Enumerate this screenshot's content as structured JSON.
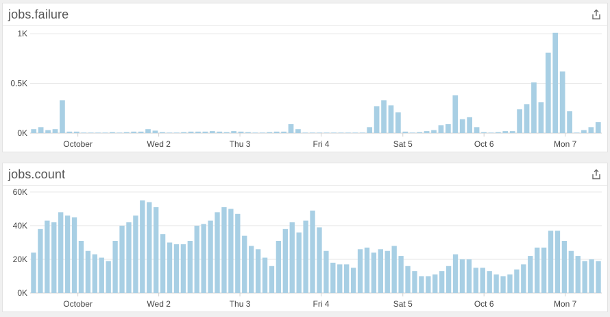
{
  "colors": {
    "bar": "#a8cfe4",
    "grid": "#e6e6e6",
    "axis": "#cfcfcf",
    "text": "#444444"
  },
  "icons": {
    "share": "share-icon"
  },
  "chart_data": [
    {
      "type": "bar",
      "title": "jobs.failure",
      "xlabel": "",
      "ylabel": "",
      "x_tick_labels": [
        "October",
        "Wed 2",
        "Thu 3",
        "Fri 4",
        "Sat 5",
        "Oct 6",
        "Mon 7"
      ],
      "y_tick_labels": [
        "0K",
        "0.5K",
        "1K"
      ],
      "y_ticks": [
        0,
        500,
        1000
      ],
      "ylim": [
        0,
        1050
      ],
      "grid": true,
      "legend": "none",
      "values": [
        40,
        60,
        30,
        40,
        330,
        15,
        15,
        5,
        5,
        5,
        5,
        10,
        5,
        10,
        15,
        15,
        40,
        25,
        10,
        5,
        5,
        10,
        15,
        15,
        15,
        20,
        15,
        10,
        20,
        15,
        10,
        5,
        5,
        10,
        15,
        15,
        90,
        40,
        5,
        5,
        5,
        5,
        5,
        5,
        5,
        5,
        5,
        60,
        270,
        330,
        280,
        210,
        15,
        5,
        10,
        20,
        30,
        80,
        90,
        380,
        140,
        160,
        60,
        10,
        5,
        10,
        20,
        20,
        240,
        290,
        510,
        310,
        810,
        1010,
        620,
        220,
        5,
        30,
        60,
        110
      ]
    },
    {
      "type": "bar",
      "title": "jobs.count",
      "xlabel": "",
      "ylabel": "",
      "x_tick_labels": [
        "October",
        "Wed 2",
        "Thu 3",
        "Fri 4",
        "Sat 5",
        "Oct 6",
        "Mon 7"
      ],
      "y_tick_labels": [
        "0K",
        "20K",
        "40K",
        "60K"
      ],
      "y_ticks": [
        0,
        20000,
        40000,
        60000
      ],
      "ylim": [
        0,
        62000
      ],
      "grid": true,
      "legend": "none",
      "values": [
        24000,
        38000,
        43000,
        42000,
        48000,
        46000,
        45000,
        31000,
        25000,
        23000,
        21000,
        19000,
        31000,
        40000,
        42000,
        46000,
        55000,
        54000,
        51000,
        35000,
        30000,
        29000,
        29000,
        31000,
        40000,
        41000,
        43000,
        48000,
        51000,
        50000,
        47000,
        34000,
        28000,
        26000,
        21000,
        16000,
        31000,
        38000,
        42000,
        36000,
        43000,
        49000,
        39000,
        25000,
        18000,
        17000,
        17000,
        15000,
        26000,
        27000,
        24000,
        26000,
        25000,
        28000,
        22000,
        16000,
        13000,
        10000,
        10000,
        11000,
        13000,
        16000,
        23000,
        20000,
        20000,
        15000,
        15000,
        13000,
        11000,
        10000,
        11000,
        14000,
        17000,
        22000,
        27000,
        27000,
        37000,
        37000,
        31000,
        25000,
        22000,
        19000,
        20000,
        19000
      ]
    }
  ]
}
